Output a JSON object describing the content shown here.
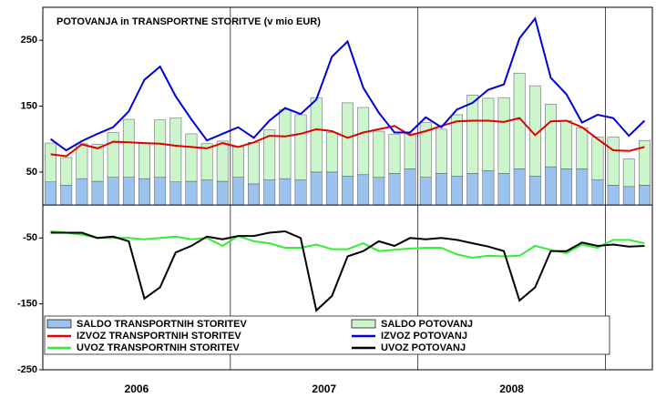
{
  "chart_data": {
    "type": "bar",
    "stacked": true,
    "title": "POTOVANJA in TRANSPORTNE STORITVE (v mio EUR)",
    "categories": [
      null,
      null,
      null,
      null,
      null,
      null,
      null,
      null,
      null,
      null,
      null,
      null,
      null,
      null,
      null,
      null,
      null,
      null,
      null,
      null,
      null,
      null,
      null,
      null,
      null,
      null,
      null,
      null,
      null,
      null,
      null,
      null,
      null,
      null,
      null,
      null,
      null,
      null,
      null
    ],
    "year_labels": [
      "2006",
      "2007",
      "2008"
    ],
    "ylim": [
      -250,
      300
    ],
    "yticks": [
      -250,
      -150,
      -50,
      50,
      150,
      250
    ],
    "series": [
      {
        "name": "SALDO TRANSPORTNIH STORITEV",
        "type": "bar",
        "color": "#9cc2ee",
        "values": [
          35,
          30,
          40,
          36,
          42,
          42,
          40,
          42,
          35,
          36,
          38,
          36,
          42,
          32,
          38,
          40,
          38,
          50,
          50,
          44,
          46,
          42,
          48,
          55,
          42,
          48,
          44,
          48,
          52,
          48,
          55,
          44,
          58,
          55,
          55,
          38,
          30,
          28,
          30
        ]
      },
      {
        "name": "SALDO POTOVANJ",
        "type": "bar",
        "color": "#ccf5cc",
        "values": [
          59,
          42,
          53,
          56,
          68,
          88,
          53,
          87,
          97,
          72,
          55,
          61,
          46,
          63,
          76,
          105,
          99,
          113,
          60,
          111,
          102,
          70,
          59,
          53,
          83,
          67,
          93,
          119,
          110,
          115,
          145,
          137,
          95,
          73,
          62,
          65,
          73,
          42,
          68
        ]
      },
      {
        "name": "IZVOZ TRANSPORTNIH STORITEV",
        "type": "line",
        "color": "#e00000",
        "values": [
          77,
          74,
          92,
          86,
          96,
          95,
          94,
          93,
          90,
          88,
          86,
          94,
          88,
          95,
          105,
          104,
          108,
          115,
          112,
          102,
          110,
          115,
          120,
          106,
          112,
          120,
          127,
          128,
          128,
          126,
          132,
          106,
          127,
          128,
          118,
          100,
          83,
          82,
          88
        ]
      },
      {
        "name": "IZVOZ POTOVANJ",
        "type": "line",
        "color": "#0000dd",
        "values": [
          100,
          83,
          97,
          108,
          118,
          142,
          190,
          210,
          165,
          130,
          98,
          108,
          118,
          102,
          128,
          147,
          138,
          160,
          225,
          248,
          178,
          140,
          110,
          110,
          133,
          118,
          145,
          155,
          175,
          183,
          253,
          283,
          193,
          168,
          125,
          137,
          132,
          105,
          128
        ]
      },
      {
        "name": "UVOZ TRANSPORTNIH STORITEV",
        "type": "line",
        "color": "#33ee33",
        "values": [
          -40,
          -42,
          -45,
          -50,
          -50,
          -50,
          -52,
          -50,
          -48,
          -52,
          -50,
          -62,
          -47,
          -55,
          -58,
          -65,
          -65,
          -60,
          -67,
          -67,
          -58,
          -70,
          -68,
          -66,
          -65,
          -65,
          -75,
          -80,
          -77,
          -78,
          -77,
          -62,
          -68,
          -73,
          -60,
          -65,
          -53,
          -53,
          -58
        ]
      },
      {
        "name": "UVOZ POTOVANJ",
        "type": "line",
        "color": "#000000",
        "values": [
          -42,
          -42,
          -42,
          -50,
          -48,
          -55,
          -142,
          -125,
          -72,
          -62,
          -48,
          -52,
          -47,
          -47,
          -42,
          -40,
          -50,
          -160,
          -138,
          -78,
          -70,
          -55,
          -62,
          -50,
          -52,
          -50,
          -53,
          -58,
          -63,
          -70,
          -145,
          -125,
          -70,
          -70,
          -57,
          -62,
          -60,
          -63,
          -62
        ]
      }
    ]
  }
}
